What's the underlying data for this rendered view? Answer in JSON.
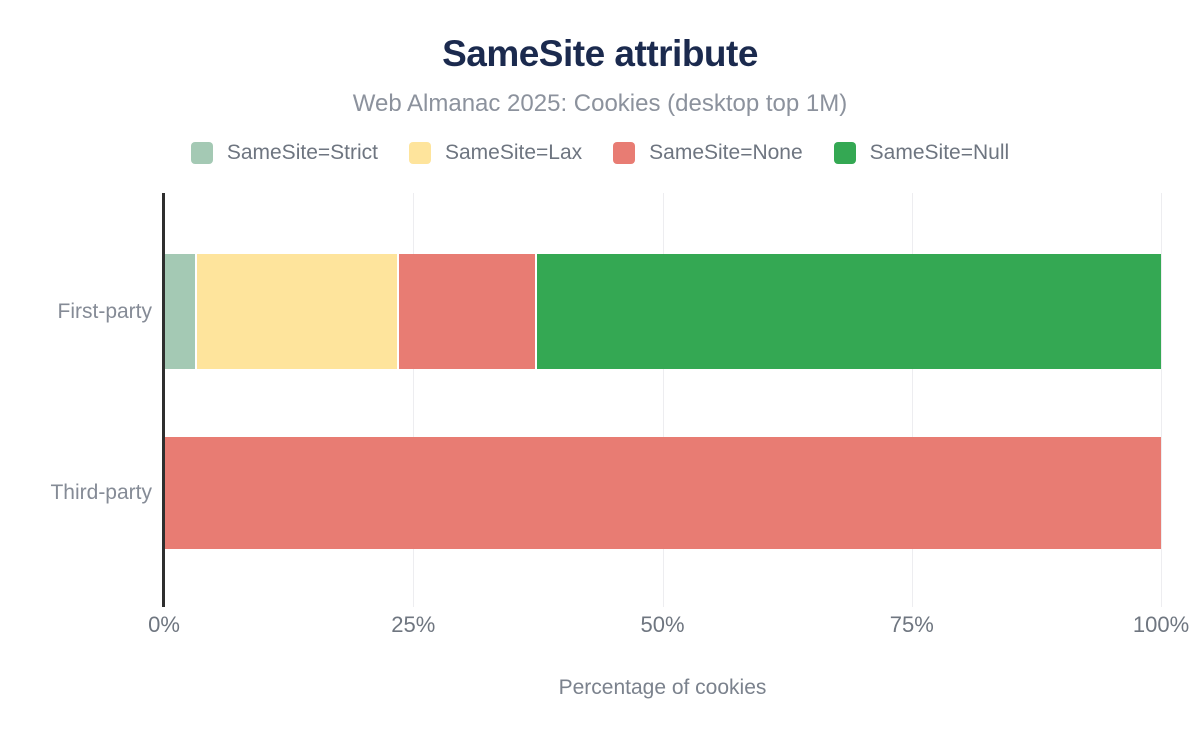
{
  "chart_data": {
    "type": "bar",
    "orientation": "horizontal",
    "stacked": true,
    "title": "SameSite attribute",
    "subtitle": "Web Almanac 2025: Cookies (desktop top 1M)",
    "xlabel": "Percentage of cookies",
    "ylabel": "",
    "categories": [
      "First-party",
      "Third-party"
    ],
    "series": [
      {
        "name": "SameSite=Strict",
        "color": "#a4c9b4",
        "values": [
          3.3,
          0
        ]
      },
      {
        "name": "SameSite=Lax",
        "color": "#fee49c",
        "values": [
          20.3,
          0
        ]
      },
      {
        "name": "SameSite=None",
        "color": "#e87c73",
        "values": [
          13.8,
          100
        ]
      },
      {
        "name": "SameSite=Null",
        "color": "#34a853",
        "values": [
          62.6,
          0
        ]
      }
    ],
    "xlim": [
      0,
      100
    ],
    "x_ticks": [
      0,
      25,
      50,
      75,
      100
    ],
    "x_tick_labels": [
      "0%",
      "25%",
      "50%",
      "75%",
      "100%"
    ],
    "grid": true,
    "legend_position": "top"
  },
  "colors": {
    "background": "#ffffff",
    "title_text": "#1b2a4e",
    "subtitle_text": "#8c929d",
    "legend_text": "#6e7580",
    "tick_text": "#6f7680",
    "category_text": "#858b96",
    "axis_line": "#2e2e2e",
    "gridline": "#ededf0"
  }
}
